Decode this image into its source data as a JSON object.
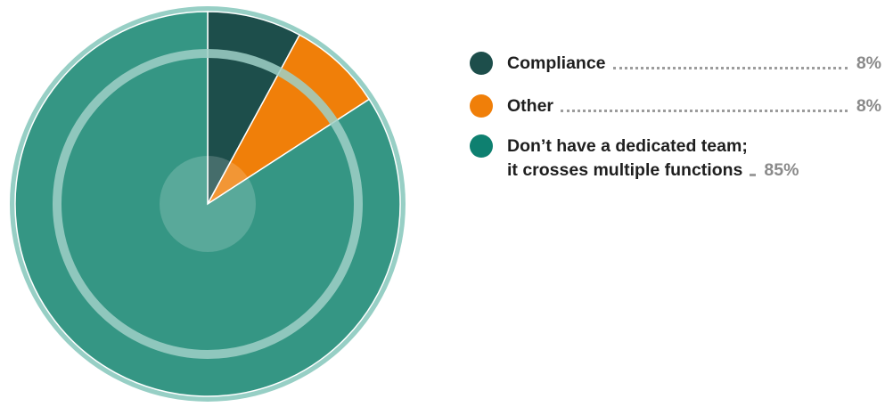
{
  "chart_data": {
    "type": "pie",
    "slices": [
      {
        "label": "Compliance",
        "value": 8,
        "display": "8%",
        "color": "#1d4e4b"
      },
      {
        "label": "Other",
        "value": 8,
        "display": "8%",
        "color": "#f07f09"
      },
      {
        "label_line1": "Don’t have a dedicated team;",
        "label_line2": "it crosses multiple functions",
        "value": 85,
        "display": "85%",
        "color": "#359684"
      }
    ],
    "legend_position": "right",
    "accent_ring_color": "#97cfc5"
  }
}
